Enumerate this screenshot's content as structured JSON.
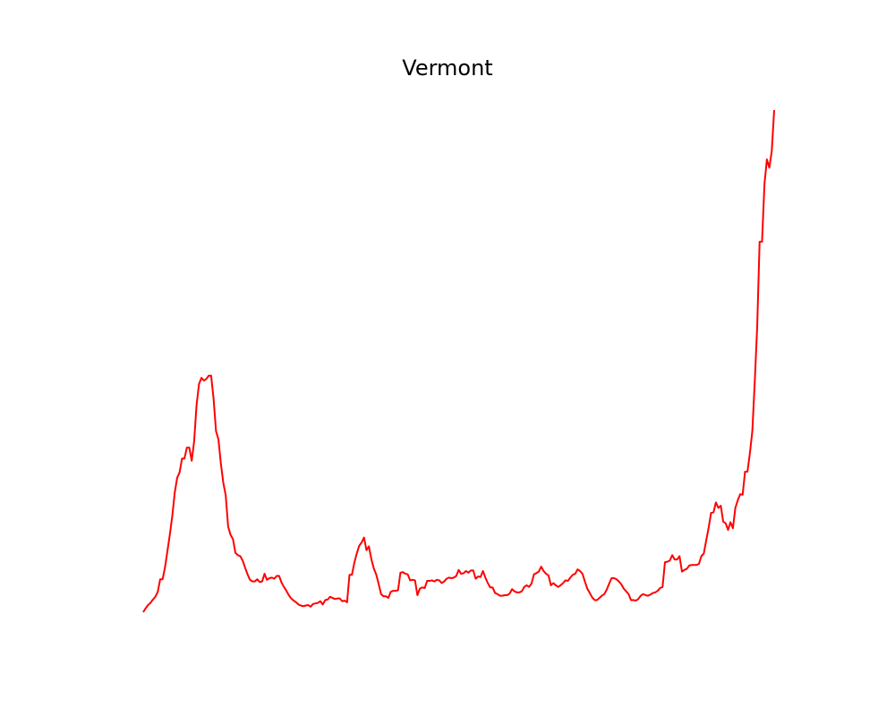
{
  "chart_data": {
    "type": "line",
    "title": "Vermont",
    "axes_visible": false,
    "grid": false,
    "ylim": [
      0,
      100
    ],
    "series": [
      {
        "color": "#ff0000",
        "values": [
          0,
          0.7,
          1.3,
          1.7,
          2.3,
          2.8,
          3.7,
          6.0,
          6.0,
          8.2,
          11.2,
          14.2,
          17.6,
          21.8,
          24.5,
          25.5,
          28.0,
          28.0,
          30.0,
          30.0,
          27.6,
          31.2,
          37.8,
          41.6,
          42.7,
          42.2,
          42.5,
          43.1,
          43.1,
          38.9,
          33.0,
          31.5,
          27.1,
          23.6,
          21.3,
          15.6,
          14.1,
          13.3,
          10.8,
          10.4,
          10.2,
          9.4,
          8.1,
          6.9,
          5.9,
          5.6,
          5.6,
          6.0,
          5.5,
          5.6,
          7.0,
          5.9,
          6.2,
          6.3,
          6.1,
          6.6,
          6.6,
          5.4,
          4.6,
          3.9,
          3.1,
          2.5,
          2.1,
          1.8,
          1.4,
          1.2,
          1.1,
          1.2,
          1.3,
          1.0,
          1.5,
          1.6,
          1.7,
          2.0,
          1.4,
          2.2,
          2.3,
          2.8,
          2.6,
          2.4,
          2.5,
          2.5,
          2.0,
          2.1,
          1.8,
          6.8,
          6.8,
          9.0,
          10.7,
          12.1,
          12.7,
          13.6,
          11.3,
          12.0,
          9.7,
          8.0,
          6.9,
          5.2,
          3.3,
          2.9,
          2.9,
          2.6,
          3.7,
          3.9,
          3.9,
          4.0,
          7.2,
          7.3,
          7.0,
          6.9,
          5.8,
          5.9,
          5.8,
          3.1,
          4.3,
          4.5,
          4.4,
          5.7,
          5.7,
          5.8,
          5.6,
          5.9,
          5.8,
          5.3,
          5.6,
          6.1,
          6.3,
          6.2,
          6.3,
          6.6,
          7.7,
          7.0,
          7.1,
          7.5,
          7.2,
          7.6,
          7.6,
          6.1,
          6.5,
          6.4,
          7.5,
          6.3,
          5.3,
          4.5,
          4.5,
          3.5,
          3.3,
          3.0,
          3.0,
          3.1,
          3.1,
          3.4,
          4.2,
          3.8,
          3.6,
          3.6,
          3.8,
          4.6,
          4.9,
          4.6,
          5.2,
          6.9,
          7.1,
          7.4,
          8.3,
          7.5,
          7.0,
          6.7,
          4.9,
          5.3,
          4.9,
          4.6,
          4.9,
          5.3,
          5.8,
          5.7,
          6.3,
          6.8,
          7.0,
          7.8,
          7.5,
          7.0,
          5.6,
          4.3,
          3.5,
          2.7,
          2.2,
          2.2,
          2.6,
          3.0,
          3.3,
          4.1,
          5.2,
          6.2,
          6.2,
          6.0,
          5.6,
          5.1,
          4.3,
          3.8,
          3.3,
          2.2,
          2.2,
          2.1,
          2.4,
          3.0,
          3.3,
          3.1,
          3.0,
          3.2,
          3.5,
          3.6,
          3.9,
          4.4,
          4.6,
          9.1,
          9.2,
          9.4,
          10.4,
          9.6,
          9.6,
          10.2,
          7.4,
          7.7,
          7.9,
          8.5,
          8.6,
          8.6,
          8.6,
          8.8,
          10.2,
          10.7,
          13.1,
          15.4,
          18.1,
          18.2,
          20.0,
          19.0,
          19.4,
          16.5,
          16.2,
          15.0,
          16.4,
          15.3,
          19.0,
          20.4,
          21.5,
          21.4,
          25.6,
          25.6,
          29.0,
          33.0,
          42.0,
          52.0,
          67.5,
          67.5,
          78.0,
          82.5,
          81.0,
          84.0,
          91.5
        ]
      }
    ]
  }
}
